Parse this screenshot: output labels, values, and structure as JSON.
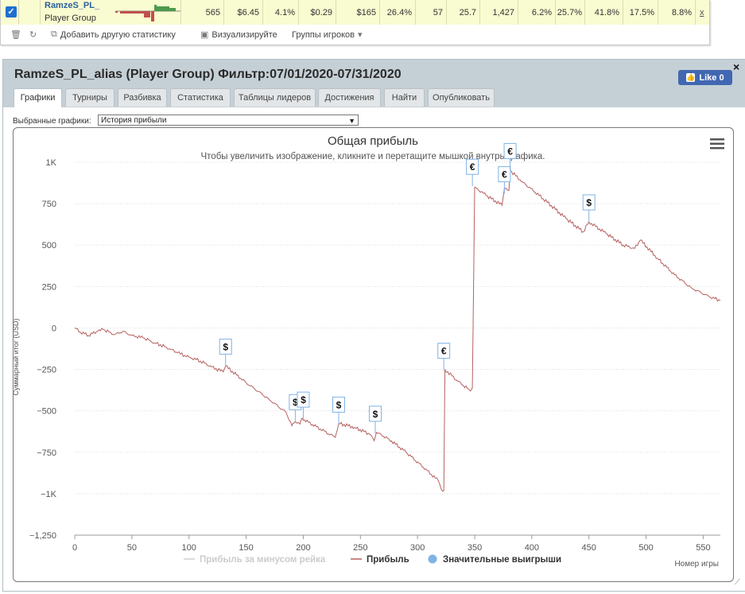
{
  "stats_row": {
    "name": "RamzeS_PL_",
    "group": "Player Group",
    "values": [
      "565",
      "$6.45",
      "4.1%",
      "$0.29",
      "$165",
      "26.4%",
      "57",
      "25.7",
      "1,427",
      "6.2%",
      "25.7%",
      "41.8%",
      "17.5%",
      "8.8%"
    ],
    "remove": "x"
  },
  "toolbar": {
    "add_stat": "Добавить другую статистику",
    "visualize": "Визуализируйте",
    "player_groups": "Группы игроков"
  },
  "panel": {
    "title": "RamzeS_PL_alias (Player Group) Фильтр:07/01/2020-07/31/2020",
    "fb_label": "Like 0",
    "close": "×",
    "tabs": [
      "Графики",
      "Турниры",
      "Разбивка",
      "Статистика",
      "Таблицы лидеров",
      "Достижения",
      "Найти",
      "Опубликовать"
    ],
    "active_tab": 0,
    "select_label": "Выбранные графики:",
    "select_value": "История прибыли"
  },
  "colors": {
    "profit_line": "#b5615f",
    "profit_after_rake": "#cfcfcf",
    "big_wins": "#7fb2e5",
    "panel_bg": "#c5d0d6",
    "fb_blue": "#4267b2"
  },
  "chart_data": {
    "type": "line",
    "title": "Общая прибыль",
    "subtitle": "Чтобы увеличить изображение, кликните и перетащите мышкой внутрь графика.",
    "ylabel": "Суммарный итог (USD)",
    "xlabel": "Номер игры",
    "ylim": [
      -1250,
      1000
    ],
    "xlim": [
      0,
      565
    ],
    "yticks": [
      -1250,
      -1000,
      -750,
      -500,
      -250,
      0,
      250,
      500,
      750,
      1000
    ],
    "ytick_labels": [
      "−1,250",
      "−1K",
      "−750",
      "−500",
      "−250",
      "0",
      "250",
      "500",
      "750",
      "1K"
    ],
    "xticks": [
      0,
      50,
      100,
      150,
      200,
      250,
      300,
      350,
      400,
      450,
      500,
      550
    ],
    "grid": "horizontal-dotted",
    "legend_position": "bottom-center",
    "legend": [
      "Прибыль за минусом рейка",
      "Прибыль",
      "Значительные выигрыши"
    ],
    "series": [
      {
        "name": "Прибыль",
        "x": [
          0,
          5,
          12,
          20,
          25,
          35,
          42,
          50,
          60,
          70,
          80,
          90,
          100,
          110,
          120,
          130,
          132,
          150,
          170,
          185,
          190,
          193,
          197,
          199,
          201,
          215,
          228,
          231,
          245,
          258,
          262,
          264,
          275,
          290,
          305,
          318,
          322,
          323,
          324,
          335,
          345,
          347,
          348,
          350,
          360,
          374,
          376,
          380,
          381,
          392,
          410,
          430,
          445,
          450,
          465,
          480,
          490,
          495,
          510,
          525,
          540,
          555,
          565
        ],
        "y": [
          0,
          -25,
          -45,
          -20,
          -10,
          -40,
          -20,
          -45,
          -60,
          -90,
          -115,
          -150,
          -175,
          -200,
          -235,
          -265,
          -230,
          -330,
          -430,
          -510,
          -590,
          -565,
          -580,
          -545,
          -555,
          -610,
          -660,
          -575,
          -600,
          -640,
          -680,
          -630,
          -670,
          -750,
          -840,
          -920,
          -985,
          -980,
          -250,
          -320,
          -370,
          -375,
          -360,
          850,
          800,
          740,
          840,
          830,
          950,
          880,
          780,
          660,
          580,
          640,
          570,
          500,
          480,
          530,
          420,
          320,
          240,
          190,
          165
        ]
      }
    ],
    "big_wins": [
      {
        "x": 132,
        "y": -230,
        "label": "$"
      },
      {
        "x": 193,
        "y": -565,
        "label": "$"
      },
      {
        "x": 200,
        "y": -550,
        "label": "$"
      },
      {
        "x": 231,
        "y": -580,
        "label": "$"
      },
      {
        "x": 263,
        "y": -635,
        "label": "$"
      },
      {
        "x": 323,
        "y": -255,
        "label": "€"
      },
      {
        "x": 348,
        "y": 855,
        "label": "€"
      },
      {
        "x": 376,
        "y": 810,
        "label": "€"
      },
      {
        "x": 381,
        "y": 950,
        "label": "€"
      },
      {
        "x": 450,
        "y": 640,
        "label": "$"
      }
    ]
  }
}
